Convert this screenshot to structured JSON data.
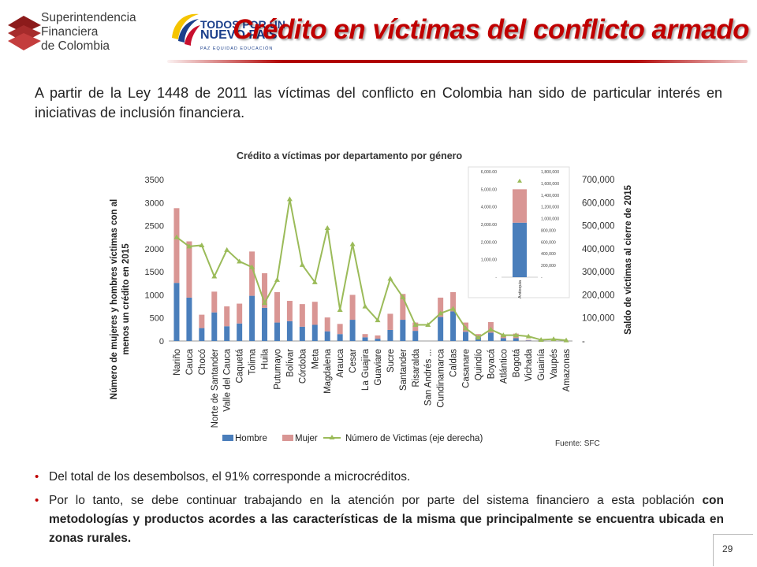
{
  "header": {
    "org_name_lines": [
      "Superintendencia",
      "Financiera",
      "de Colombia"
    ],
    "gov_logo_lines": [
      "TODOS POR UN",
      "NUEVO PAÍS"
    ],
    "gov_logo_sub": "PAZ EQUIDAD EDUCACIÓN",
    "page_title": "Crédito en víctimas del conflicto armado"
  },
  "intro_text": "A partir de la Ley 1448 de 2011 las víctimas del conflicto en Colombia han sido de particular interés en iniciativas de inclusión financiera.",
  "chart_data": {
    "type": "bar",
    "title": "Crédito a víctimas por departamento por género",
    "ylabel": "Número de mujeres y hombres víctimas con al menos un crédito en 2015",
    "y2label": "Saldo de víctimas al cierre de 2015",
    "ylim": [
      0,
      3500
    ],
    "y2lim": [
      0,
      700000
    ],
    "yticks": [
      "0",
      "500",
      "1000",
      "1500",
      "2000",
      "2500",
      "3000",
      "3500"
    ],
    "y2ticks": [
      "-",
      "100,000",
      "200,000",
      "300,000",
      "400,000",
      "500,000",
      "600,000",
      "700,000"
    ],
    "categories": [
      "Nariño",
      "Cauca",
      "Chocó",
      "Norte de Santander",
      "Valle del Cauca",
      "Caquetá",
      "Tolima",
      "Huila",
      "Putumayo",
      "Bolívar",
      "Córdoba",
      "Meta",
      "Magdalena",
      "Arauca",
      "Cesar",
      "La Guajira",
      "Guaviare",
      "Sucre",
      "Santander",
      "Risaralda",
      "San Andrés ...",
      "Cundinamarca",
      "Caldas",
      "Casanare",
      "Quindío",
      "Boyacá",
      "Atlántico",
      "Bogotá",
      "Vichada",
      "Guainía",
      "Vaupés",
      "Amazonas"
    ],
    "series": [
      {
        "name": "Hombre",
        "color": "#4a7ebb",
        "values": [
          1260,
          940,
          280,
          620,
          320,
          380,
          980,
          720,
          400,
          430,
          310,
          350,
          210,
          150,
          460,
          80,
          50,
          240,
          460,
          220,
          0,
          520,
          640,
          200,
          80,
          180,
          60,
          60,
          10,
          8,
          6,
          4
        ]
      },
      {
        "name": "Mujer",
        "color": "#d99694",
        "values": [
          1620,
          1220,
          290,
          450,
          430,
          430,
          960,
          750,
          660,
          440,
          490,
          500,
          300,
          220,
          540,
          70,
          70,
          350,
          560,
          180,
          0,
          420,
          420,
          200,
          70,
          230,
          70,
          100,
          15,
          10,
          8,
          6
        ]
      },
      {
        "name": "Número de Victimas (eje derecha)",
        "axis": "right",
        "color": "#9bbb59",
        "values": [
          450000,
          410000,
          415000,
          280000,
          395000,
          345000,
          320000,
          165000,
          265000,
          615000,
          330000,
          255000,
          490000,
          135000,
          420000,
          150000,
          90000,
          270000,
          190000,
          70000,
          70000,
          120000,
          140000,
          55000,
          15000,
          50000,
          25000,
          25000,
          20000,
          5000,
          8000,
          3000
        ]
      }
    ],
    "legend": [
      "Hombre",
      "Mujer",
      "Número de Victimas (eje derecha)"
    ],
    "legend_position": "bottom",
    "source": "Fuente: SFC",
    "inset": {
      "category": "Antioquia",
      "hombre": 3100,
      "mujer": 1900,
      "victimas": 1640000,
      "ylim": [
        0,
        6000
      ],
      "y2lim": [
        0,
        1800000
      ],
      "yticks": [
        "-",
        "1,000.00",
        "2,000.00",
        "3,000.00",
        "4,000.00",
        "5,000.00",
        "6,000.00"
      ],
      "y2ticks": [
        "-",
        "200,000",
        "400,000",
        "600,000",
        "800,000",
        "1,000,000",
        "1,200,000",
        "1,400,000",
        "1,600,000",
        "1,800,000"
      ]
    }
  },
  "bullets": [
    {
      "parts": [
        {
          "text": "Del total de los desembolsos, el 91% corresponde a microcréditos.",
          "bold": false
        }
      ]
    },
    {
      "parts": [
        {
          "text": "Por lo tanto, se debe continuar trabajando en la atención por parte del sistema financiero a esta población ",
          "bold": false
        },
        {
          "text": "con metodologías y productos acordes a las características de la misma que principalmente se encuentra ubicada en zonas rurales.",
          "bold": true
        }
      ]
    }
  ],
  "footer": {
    "page_number": "29"
  },
  "colors": {
    "title_red": "#c00000",
    "accent_blue": "#1b3f8b"
  }
}
